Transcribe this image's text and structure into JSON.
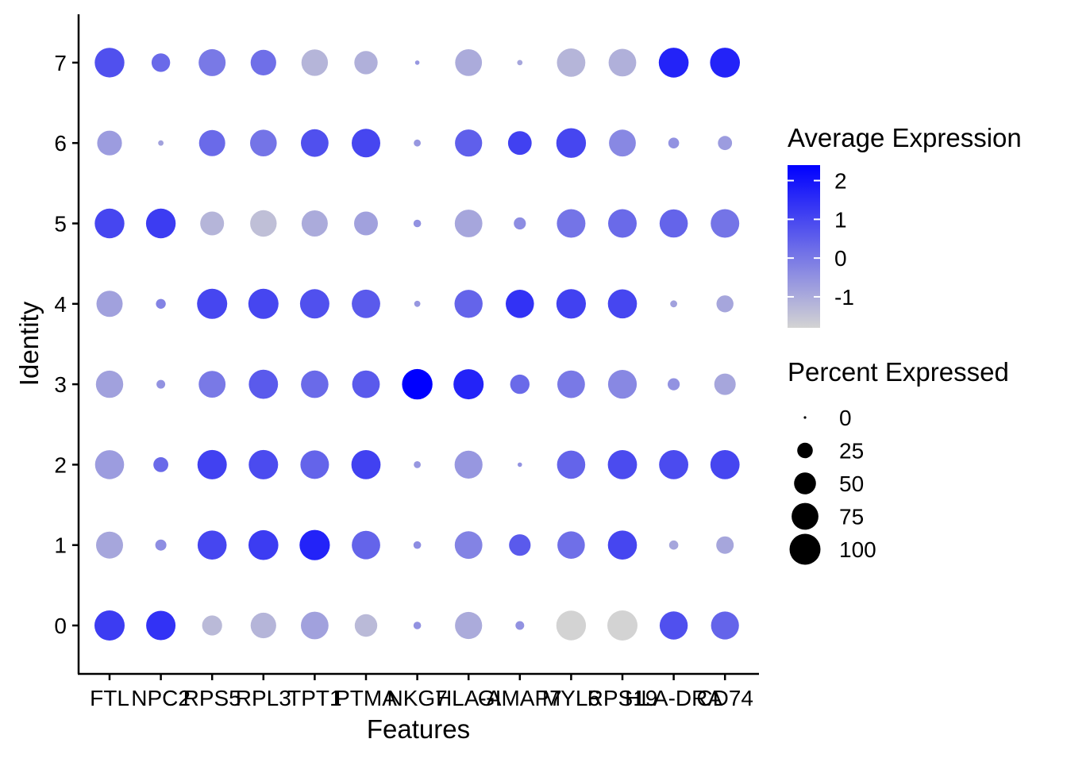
{
  "chart_data": {
    "type": "dot",
    "xlabel": "Features",
    "ylabel": "Identity",
    "features": [
      "FTL",
      "NPC2",
      "RPS5",
      "RPL3",
      "TPT1",
      "PTMA",
      "NKG7",
      "HLA-A",
      "GIMAP7",
      "MYL6",
      "RPS19",
      "HLA-DRA",
      "CD74"
    ],
    "identities": [
      "0",
      "1",
      "2",
      "3",
      "4",
      "5",
      "6",
      "7"
    ],
    "color_scale": {
      "title": "Average Expression",
      "min": -1.8,
      "max": 2.4,
      "ticks": [
        -1,
        0,
        1,
        2
      ],
      "low_color": "#d3d3d3",
      "high_color": "#0000ff"
    },
    "size_scale": {
      "title": "Percent Expressed",
      "max": 100,
      "ticks": [
        0,
        25,
        50,
        75,
        100
      ]
    },
    "avg_expression": [
      [
        1.2,
        1.4,
        -1.3,
        -1.2,
        -0.8,
        -1.3,
        -0.5,
        -1.0,
        -0.5,
        -1.8,
        -1.8,
        0.8,
        0.4
      ],
      [
        -0.9,
        -0.4,
        1.0,
        1.2,
        1.7,
        0.4,
        -0.4,
        -0.2,
        0.6,
        0.2,
        1.0,
        -0.9,
        -0.9
      ],
      [
        -0.7,
        0.3,
        1.1,
        0.9,
        0.4,
        1.1,
        -0.6,
        -0.6,
        -0.5,
        0.4,
        0.9,
        0.9,
        1.0
      ],
      [
        -0.8,
        -0.5,
        0.0,
        0.6,
        0.3,
        0.6,
        2.4,
        1.7,
        0.3,
        0.0,
        -0.3,
        -0.5,
        -0.9
      ],
      [
        -0.8,
        -0.2,
        1.0,
        1.0,
        0.8,
        0.6,
        -0.6,
        0.4,
        1.4,
        1.1,
        1.0,
        -0.8,
        -0.9
      ],
      [
        1.0,
        1.2,
        -1.2,
        -1.4,
        -1.0,
        -0.8,
        -0.5,
        -0.9,
        -0.4,
        0.1,
        0.3,
        0.4,
        0.1
      ],
      [
        -0.7,
        -0.8,
        0.3,
        0.1,
        0.8,
        1.0,
        -0.6,
        0.5,
        1.1,
        1.0,
        -0.3,
        -0.5,
        -0.7
      ],
      [
        0.8,
        0.3,
        0.0,
        0.2,
        -1.2,
        -1.1,
        -0.6,
        -1.0,
        -0.9,
        -1.2,
        -1.1,
        1.7,
        1.7
      ]
    ],
    "pct_expressed": [
      [
        95,
        90,
        42,
        68,
        80,
        53,
        6,
        77,
        8,
        92,
        95,
        82,
        81
      ],
      [
        76,
        13,
        88,
        93,
        96,
        84,
        6,
        80,
        49,
        79,
        88,
        9,
        32
      ],
      [
        88,
        23,
        90,
        90,
        85,
        89,
        5,
        81,
        2,
        83,
        89,
        89,
        89
      ],
      [
        78,
        8,
        75,
        89,
        79,
        80,
        97,
        95,
        39,
        80,
        86,
        15,
        48
      ],
      [
        72,
        10,
        95,
        95,
        90,
        84,
        4,
        82,
        83,
        91,
        88,
        5,
        30
      ],
      [
        92,
        92,
        59,
        73,
        72,
        59,
        6,
        80,
        15,
        85,
        85,
        83,
        85
      ],
      [
        64,
        3,
        72,
        74,
        80,
        85,
        5,
        77,
        58,
        92,
        75,
        12,
        21
      ],
      [
        92,
        36,
        76,
        68,
        73,
        57,
        2,
        75,
        3,
        84,
        80,
        93,
        93
      ]
    ]
  }
}
